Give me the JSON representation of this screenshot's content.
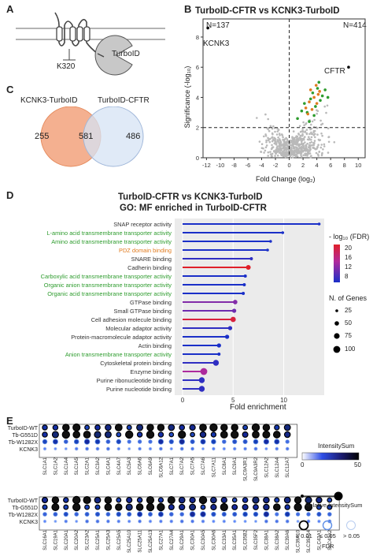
{
  "panels": {
    "A": {
      "label": "A",
      "site_label": "K320",
      "enzyme_label": "TurboID"
    },
    "B": {
      "label": "B",
      "title": "TurboID-CFTR vs KCNK3-TurboID",
      "xlabel": "Fold Change (log₂)",
      "ylabel": "Significance (-log₁₀)",
      "n_left": "N=137",
      "n_right": "N=414",
      "point_left": "KCNK3",
      "point_right": "CFTR",
      "xticks": [
        "-12",
        "-10",
        "-8",
        "-6",
        "-4",
        "-2",
        "0",
        "2",
        "4",
        "6",
        "8",
        "10"
      ],
      "yticks": [
        "0",
        "2",
        "4",
        "6",
        "8"
      ]
    },
    "C": {
      "label": "C",
      "left_name": "KCNK3-TurboID",
      "right_name": "TurboID-CFTR",
      "left_only": "255",
      "overlap": "581",
      "right_only": "486"
    },
    "D": {
      "label": "D",
      "title_line1": "TurboID-CFTR vs KCNK3-TurboID",
      "title_line2": "GO: MF enriched in TurboID-CFTR",
      "xlabel": "Fold enrichment",
      "xticks": [
        "0",
        "5",
        "10"
      ],
      "fdr_legend_title": "- log₁₀ (FDR)",
      "fdr_ticks": [
        "20",
        "16",
        "12",
        "8"
      ],
      "size_legend_title": "N. of Genes",
      "size_ticks": [
        "25",
        "50",
        "75",
        "100"
      ]
    },
    "E": {
      "label": "E",
      "row_labels": [
        "TurboID-WT",
        "Tb-G551D",
        "Tb-W1282X",
        "KCNK3"
      ],
      "intensity_title": "IntensitySum",
      "intensity_ticks": [
        "0",
        "50"
      ],
      "relative_label": "Relative IntensitySum",
      "fdr_label": "FDR",
      "fdr_levels": [
        "≤ 0.01",
        "≤ 0.05",
        "> 0.05"
      ]
    }
  },
  "colors": {
    "green": "#2e9c2e",
    "orange": "#e07b1f",
    "blue_dark": "#1a2fc8",
    "red": "#e0202a",
    "venn_left": "#f2a27d",
    "venn_right": "#d6e3f4"
  },
  "chart_data": [
    {
      "type": "scatter",
      "title": "TurboID-CFTR vs KCNK3-TurboID",
      "xlabel": "Fold Change (log₂)",
      "ylabel": "Significance (-log₁₀)",
      "xlim": [
        -12.5,
        11
      ],
      "ylim": [
        0,
        9.2
      ],
      "thresholds": {
        "x": 0,
        "y": 2
      },
      "labeled_points": [
        {
          "name": "KCNK3",
          "x": -11.8,
          "y": 8.6
        },
        {
          "name": "CFTR",
          "x": 8.6,
          "y": 6.0
        }
      ],
      "series": [
        {
          "values": [
            [
              1.2,
              2.6
            ],
            [
              1.8,
              3.1
            ],
            [
              2.2,
              3.6
            ],
            [
              2.6,
              3.0
            ],
            [
              3.1,
              3.9
            ],
            [
              3.4,
              4.3
            ],
            [
              3.8,
              3.4
            ],
            [
              4.1,
              4.6
            ],
            [
              4.5,
              3.8
            ],
            [
              4.8,
              4.1
            ],
            [
              2.9,
              2.4
            ],
            [
              5.2,
              4.5
            ],
            [
              3.6,
              2.8
            ],
            [
              5.6,
              4.0
            ],
            [
              4.3,
              5.0
            ]
          ]
        },
        {
          "values": [
            [
              2.4,
              3.3
            ],
            [
              2.9,
              3.7
            ],
            [
              3.3,
              3.2
            ],
            [
              3.6,
              4.0
            ],
            [
              4.0,
              3.6
            ],
            [
              4.2,
              4.2
            ],
            [
              3.9,
              4.8
            ],
            [
              4.4,
              4.4
            ],
            [
              2.7,
              2.9
            ],
            [
              3.1,
              4.5
            ]
          ]
        }
      ]
    },
    {
      "type": "bar",
      "title": "TurboID-CFTR vs KCNK3-TurboID",
      "xlabel": "Fold enrichment",
      "xlim": [
        0,
        14
      ],
      "categories": [
        "SNAP receptor activity",
        "L-amino acid transmembrane transporter activity",
        "Amino acid transmembrane transporter activity",
        "PDZ domain binding",
        "SNARE binding",
        "Cadherin binding",
        "Carboxylic acid transmembrane transporter activity",
        "Organic anion transmembrane transporter activity",
        "Organic acid transmembrane transporter activity",
        "GTPase binding",
        "Small GTPase binding",
        "Cell adhesion molecule binding",
        "Molecular adaptor activity",
        "Protein-macromolecule adaptor activity",
        "Actin binding",
        "Anion transmembrane transporter activity",
        "Cytoskeletal protein binding",
        "Enzyme binding",
        "Purine ribonucleotide binding",
        "Purine nucleotide binding"
      ],
      "category_colors": [
        "#333",
        "#2e9c2e",
        "#2e9c2e",
        "#e07b1f",
        "#333",
        "#333",
        "#2e9c2e",
        "#2e9c2e",
        "#2e9c2e",
        "#333",
        "#333",
        "#333",
        "#333",
        "#333",
        "#333",
        "#2e9c2e",
        "#333",
        "#333",
        "#333",
        "#333"
      ],
      "values": [
        13.5,
        9.9,
        8.7,
        8.4,
        6.8,
        6.5,
        6.2,
        6.1,
        6.0,
        5.2,
        5.1,
        5.0,
        4.7,
        4.4,
        3.6,
        3.6,
        3.3,
        2.1,
        1.9,
        1.9
      ],
      "fdr": [
        8,
        8,
        8,
        8,
        9,
        21,
        8,
        8,
        8,
        13,
        12,
        20,
        9,
        8,
        8,
        8,
        9,
        15,
        9,
        9
      ],
      "n_genes": [
        25,
        25,
        25,
        25,
        30,
        60,
        30,
        30,
        30,
        55,
        50,
        70,
        50,
        50,
        50,
        30,
        80,
        100,
        80,
        80
      ]
    }
  ],
  "dotplot": {
    "top_cols": [
      "SLC1A1",
      "SLC1A2",
      "SLC1A4",
      "SLC1A5",
      "SLC2A1",
      "SLC3A2",
      "SLC4A1",
      "SLC4A7",
      "SLC5A3",
      "SLC6A6",
      "SLC6A9",
      "SLC6A12",
      "SLC7A1",
      "SLC7A2",
      "SLC7A5",
      "SLC7A6",
      "SLC7A11",
      "SLC8A1",
      "SLC9A1",
      "SLC9A3R1",
      "SLC9A3R2",
      "SLC12A2",
      "SLC12A4",
      "SLC12A7"
    ],
    "bottom_cols": [
      "SLC16A1",
      "SLC19A1",
      "SLC20A1",
      "SLC20A2",
      "SLC23A2",
      "SLC25A1",
      "SLC25A3",
      "SLC25A5",
      "SLC25A10",
      "SLC25A11",
      "SLC25A13",
      "SLC27A1",
      "SLC27A4",
      "SLC29A1",
      "SLC30A1",
      "SLC30A5",
      "SLC30A6",
      "SLC33A1",
      "SLC35A1",
      "SLC35B2",
      "SLC35F2",
      "SLC38A1",
      "SLC38A2",
      "SLC39A6",
      "SLC39A10",
      "SLC39A14",
      "SLC43A1",
      "SLC43A2"
    ]
  }
}
